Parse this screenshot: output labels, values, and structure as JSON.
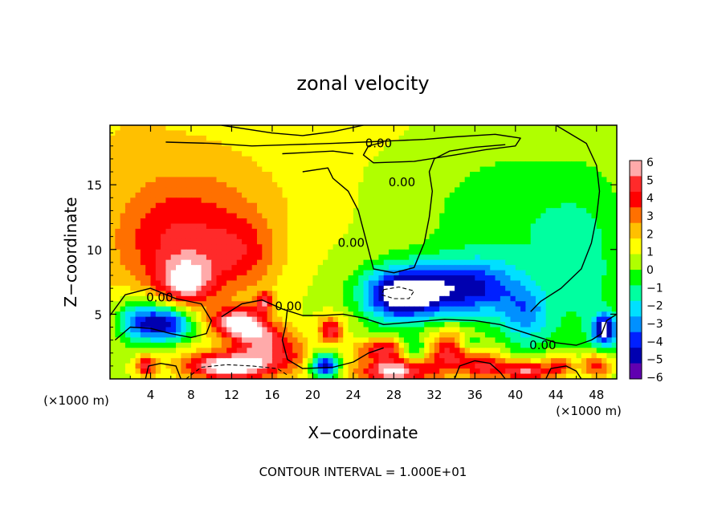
{
  "chart_data": {
    "type": "heatmap",
    "title": "zonal velocity",
    "xlabel": "X−coordinate",
    "ylabel": "Z−coordinate",
    "x_unit_left": "(×1000 m)",
    "x_unit_right": "(×1000 m)",
    "xlim": [
      0,
      50
    ],
    "ylim": [
      0,
      19.6
    ],
    "x_ticks": [
      4,
      8,
      12,
      16,
      20,
      24,
      28,
      32,
      36,
      40,
      44,
      48
    ],
    "y_ticks": [
      5,
      10,
      15
    ],
    "footer": "CONTOUR INTERVAL = 1.000E+01",
    "contour_labels": [
      {
        "text": "0.00",
        "x": 26.5,
        "y": 18.2
      },
      {
        "text": "0.00",
        "x": 28.8,
        "y": 15.2
      },
      {
        "text": "0.00",
        "x": 23.8,
        "y": 10.5
      },
      {
        "text": "0.00",
        "x": 17.6,
        "y": 5.6
      },
      {
        "text": "0.00",
        "x": 4.9,
        "y": 6.3
      },
      {
        "text": "0.00",
        "x": 42.7,
        "y": 2.6
      }
    ],
    "colorbar": {
      "ticks": [
        6,
        5,
        4,
        3,
        2,
        1,
        0,
        -1,
        -2,
        -3,
        -4,
        -5,
        -6
      ],
      "colors": [
        "#ffaaaa",
        "#ff2a2a",
        "#ff0000",
        "#ff7000",
        "#ffc000",
        "#ffff00",
        "#b0ff00",
        "#00ff00",
        "#00ffa0",
        "#00e0ff",
        "#0090ff",
        "#0020ff",
        "#0000b0",
        "#6000b0"
      ]
    },
    "blobs": [
      {
        "x": 0,
        "y": 19.6,
        "v": 0.9,
        "rx": 14,
        "ry": 4
      },
      {
        "x": 25,
        "y": 19.6,
        "v": 0.2,
        "rx": 15,
        "ry": 3
      },
      {
        "x": 6,
        "y": 10,
        "v": 3.3,
        "rx": 6.5,
        "ry": 4.5
      },
      {
        "x": 7.5,
        "y": 7.5,
        "v": 4.3,
        "rx": 2.5,
        "ry": 1.8
      },
      {
        "x": 13,
        "y": 9.5,
        "v": 2.5,
        "rx": 4,
        "ry": 3
      },
      {
        "x": 10,
        "y": 14,
        "v": 1.4,
        "rx": 10,
        "ry": 4
      },
      {
        "x": 28.5,
        "y": 6.5,
        "v": -6.5,
        "rx": 3.8,
        "ry": 2.0
      },
      {
        "x": 33,
        "y": 7,
        "v": -3.8,
        "rx": 4.5,
        "ry": 2.2
      },
      {
        "x": 37,
        "y": 7,
        "v": -2.8,
        "rx": 3.5,
        "ry": 2.2
      },
      {
        "x": 41,
        "y": 5,
        "v": -3.2,
        "rx": 2.5,
        "ry": 2.5
      },
      {
        "x": 40,
        "y": 12,
        "v": -1.6,
        "rx": 9,
        "ry": 6
      },
      {
        "x": 47,
        "y": 8,
        "v": -1.5,
        "rx": 4,
        "ry": 7
      },
      {
        "x": 5.5,
        "y": 4.3,
        "v": -6.5,
        "rx": 2.6,
        "ry": 1.4
      },
      {
        "x": 2.5,
        "y": 4.5,
        "v": -3.5,
        "rx": 2,
        "ry": 1.8
      },
      {
        "x": 48.8,
        "y": 3.8,
        "v": -6.0,
        "rx": 1.2,
        "ry": 1.2
      },
      {
        "x": 21.2,
        "y": 1.0,
        "v": -6.0,
        "rx": 1.4,
        "ry": 0.9
      },
      {
        "x": 30,
        "y": 2.2,
        "v": -3.0,
        "rx": 1.5,
        "ry": 1.0
      },
      {
        "x": 35.5,
        "y": 2.6,
        "v": -2.5,
        "rx": 1.3,
        "ry": 0.8
      },
      {
        "x": 12.5,
        "y": 4.3,
        "v": 5.8,
        "rx": 2.5,
        "ry": 1.2
      },
      {
        "x": 15,
        "y": 3.0,
        "v": 4.5,
        "rx": 2.5,
        "ry": 1.5
      },
      {
        "x": 21.8,
        "y": 3.8,
        "v": 4.5,
        "rx": 1.2,
        "ry": 1.0
      },
      {
        "x": 15.2,
        "y": 5.9,
        "v": 4.0,
        "rx": 0.8,
        "ry": 0.8
      },
      {
        "x": 12,
        "y": 1.0,
        "v": 7.0,
        "rx": 4.5,
        "ry": 1.1
      },
      {
        "x": 28,
        "y": 0.6,
        "v": 6.5,
        "rx": 3.5,
        "ry": 1.0
      },
      {
        "x": 27,
        "y": 2.3,
        "v": 4.5,
        "rx": 2.5,
        "ry": 0.8
      },
      {
        "x": 33.5,
        "y": 2.0,
        "v": 4.5,
        "rx": 2.5,
        "ry": 1.8
      },
      {
        "x": 37,
        "y": 1.0,
        "v": 4.0,
        "rx": 2,
        "ry": 1.2
      },
      {
        "x": 41,
        "y": 0.6,
        "v": 5.5,
        "rx": 2.5,
        "ry": 0.8
      },
      {
        "x": 44.5,
        "y": 1.0,
        "v": 3.5,
        "rx": 1.5,
        "ry": 1.0
      },
      {
        "x": 48,
        "y": 1.0,
        "v": 4.5,
        "rx": 1.5,
        "ry": 1.0
      },
      {
        "x": 3.5,
        "y": 1.0,
        "v": 4.0,
        "rx": 1,
        "ry": 0.8
      },
      {
        "x": 18,
        "y": 2.0,
        "v": 2.0,
        "rx": 2,
        "ry": 1.5
      }
    ],
    "contours_zero": [
      [
        [
          5.5,
          18.3
        ],
        [
          10,
          18.2
        ],
        [
          14,
          18.0
        ],
        [
          18,
          18.1
        ],
        [
          22,
          18.2
        ],
        [
          25,
          18.3
        ],
        [
          28,
          18.4
        ],
        [
          31,
          18.5
        ],
        [
          34,
          18.7
        ],
        [
          38,
          18.9
        ],
        [
          40.5,
          18.6
        ],
        [
          40,
          18.0
        ],
        [
          37,
          17.7
        ],
        [
          34,
          17.3
        ],
        [
          30,
          16.8
        ],
        [
          26,
          16.7
        ],
        [
          25,
          17.3
        ],
        [
          25.5,
          18.0
        ],
        [
          27,
          18.3
        ]
      ],
      [
        [
          11,
          19.6
        ],
        [
          16,
          19.0
        ],
        [
          19,
          18.8
        ],
        [
          22,
          19.1
        ],
        [
          25,
          19.6
        ]
      ],
      [
        [
          17,
          17.4
        ],
        [
          22,
          17.6
        ],
        [
          24,
          17.4
        ]
      ],
      [
        [
          19,
          16.0
        ],
        [
          21.5,
          16.3
        ],
        [
          22,
          15.5
        ],
        [
          23.5,
          14.5
        ],
        [
          24.5,
          13.0
        ],
        [
          25,
          11.5
        ],
        [
          25.5,
          10.0
        ],
        [
          26,
          8.5
        ],
        [
          28,
          8.2
        ],
        [
          30,
          8.6
        ],
        [
          31,
          10.5
        ],
        [
          31.5,
          12.5
        ],
        [
          31.8,
          14.5
        ],
        [
          31.5,
          16.0
        ],
        [
          32,
          17.0
        ],
        [
          33.5,
          17.6
        ],
        [
          36,
          17.9
        ],
        [
          39,
          18.1
        ]
      ],
      [
        [
          44,
          19.6
        ],
        [
          47,
          18.2
        ],
        [
          48,
          16.5
        ],
        [
          48.3,
          14.5
        ],
        [
          48.0,
          12.5
        ],
        [
          47.5,
          10.5
        ],
        [
          46.5,
          8.5
        ],
        [
          44.5,
          7.0
        ],
        [
          42.5,
          6.0
        ],
        [
          41.5,
          5.2
        ]
      ],
      [
        [
          0,
          4.9
        ],
        [
          1.5,
          6.5
        ],
        [
          4,
          7.0
        ],
        [
          6.5,
          6.2
        ],
        [
          9,
          5.8
        ],
        [
          10,
          4.5
        ],
        [
          9.5,
          3.5
        ],
        [
          8,
          3.2
        ],
        [
          6,
          3.5
        ],
        [
          4,
          3.9
        ],
        [
          2,
          4.0
        ],
        [
          0.5,
          3.0
        ]
      ],
      [
        [
          11,
          4.8
        ],
        [
          13,
          5.8
        ],
        [
          15,
          6.1
        ],
        [
          17,
          5.4
        ],
        [
          19,
          4.9
        ],
        [
          21,
          4.9
        ],
        [
          23,
          5.0
        ],
        [
          25,
          4.7
        ],
        [
          27,
          4.2
        ],
        [
          30,
          4.4
        ],
        [
          33,
          4.6
        ],
        [
          36,
          4.5
        ],
        [
          38.5,
          4.2
        ],
        [
          40,
          3.8
        ],
        [
          42,
          3.3
        ],
        [
          44,
          2.8
        ],
        [
          46,
          2.6
        ],
        [
          47.5,
          3.0
        ],
        [
          48.5,
          3.5
        ],
        [
          49,
          4.5
        ],
        [
          50,
          5.0
        ]
      ],
      [
        [
          17.5,
          5.4
        ],
        [
          17.3,
          4.0
        ],
        [
          17,
          3.0
        ],
        [
          17.5,
          1.5
        ],
        [
          19,
          0.8
        ],
        [
          22,
          0.9
        ],
        [
          24,
          1.3
        ],
        [
          25.5,
          2.0
        ],
        [
          27,
          2.4
        ]
      ],
      [
        [
          34,
          0
        ],
        [
          34.5,
          1.0
        ],
        [
          36,
          1.4
        ],
        [
          37.5,
          1.2
        ],
        [
          38.5,
          0.5
        ],
        [
          39,
          0
        ]
      ],
      [
        [
          3.5,
          0
        ],
        [
          3.8,
          1.0
        ],
        [
          5,
          1.2
        ],
        [
          6.5,
          1.0
        ],
        [
          7,
          0
        ]
      ],
      [
        [
          43,
          0
        ],
        [
          43.5,
          0.8
        ],
        [
          45,
          1.0
        ],
        [
          46,
          0.6
        ],
        [
          46.5,
          0
        ]
      ]
    ],
    "contours_dashed": [
      [
        [
          27,
          6.9
        ],
        [
          28.5,
          7.1
        ],
        [
          30,
          6.8
        ],
        [
          29.5,
          6.2
        ],
        [
          28,
          6.2
        ],
        [
          26.8,
          6.5
        ],
        [
          27,
          6.9
        ]
      ],
      [
        [
          7.5,
          0
        ],
        [
          9,
          0.9
        ],
        [
          11.5,
          1.1
        ],
        [
          14,
          1.0
        ],
        [
          16.5,
          0.8
        ],
        [
          17.5,
          0.3
        ]
      ]
    ]
  }
}
